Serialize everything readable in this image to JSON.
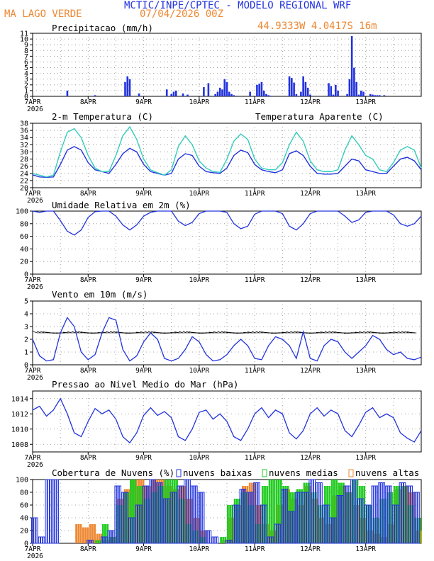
{
  "header": {
    "title": "MCTIC/INPE/CPTEC - MODELO REGIONAL WRF",
    "location": "MA LAGO VERDE",
    "run_date": "07/04/2026 00Z",
    "coords": "44.9333W 4.0417S 16m"
  },
  "colors": {
    "blue": "#2233dd",
    "cyan": "#33ccbb",
    "orange": "#ee8833",
    "green": "#22cc22",
    "title_blue": "#2233dd",
    "title_orange": "#ee8833"
  },
  "x_axis": {
    "labels": [
      "7APR",
      "8APR",
      "9APR",
      "10APR",
      "11APR",
      "12APR",
      "13APR"
    ],
    "year": "2026",
    "range_hours": [
      0,
      168
    ]
  },
  "chart_data": [
    {
      "type": "bar",
      "id": "precip",
      "title": "Precipitacao (mm/h)",
      "ylim": [
        0,
        11
      ],
      "yticks": [
        "0",
        "1",
        "2",
        "3",
        "4",
        "5",
        "6",
        "7",
        "8",
        "9",
        "10",
        "11"
      ],
      "series": [
        {
          "name": "Precipitacao",
          "x": [
            15,
            27,
            40,
            41,
            42,
            46,
            58,
            60,
            61,
            62,
            65,
            67,
            74,
            76,
            79,
            80,
            81,
            82,
            83,
            84,
            85,
            86,
            87,
            94,
            97,
            98,
            99,
            100,
            101,
            102,
            103,
            111,
            112,
            113,
            114,
            116,
            117,
            118,
            119,
            120,
            128,
            129,
            130,
            131,
            132,
            136,
            137,
            138,
            139,
            140,
            141,
            142,
            143,
            146,
            147,
            148,
            149,
            150,
            152
          ],
          "values": [
            1.0,
            0.2,
            2.5,
            3.5,
            3.0,
            0.5,
            1.2,
            0.4,
            0.8,
            1.0,
            0.5,
            0.3,
            1.6,
            2.3,
            0.4,
            0.8,
            1.5,
            1.2,
            3.0,
            2.5,
            0.8,
            0.4,
            0.2,
            0.8,
            2.0,
            2.2,
            2.5,
            1.0,
            0.4,
            0.2,
            0.1,
            3.5,
            3.2,
            2.4,
            0.4,
            0.8,
            3.5,
            2.5,
            1.5,
            0.3,
            2.3,
            1.8,
            0.3,
            2.0,
            1.0,
            0.4,
            3.0,
            10.5,
            5.0,
            2.5,
            0.3,
            1.0,
            0.8,
            0.4,
            0.3,
            0.2,
            0.2,
            0.2,
            0.2
          ]
        }
      ]
    },
    {
      "type": "line",
      "id": "temp",
      "title": "2-m Temperatura (C)",
      "title2": "Temperatura Aparente (C)",
      "ylim": [
        20,
        38
      ],
      "yticks": [
        "20",
        "22",
        "24",
        "26",
        "28",
        "30",
        "32",
        "34",
        "36",
        "38"
      ],
      "x": [
        0,
        3,
        6,
        9,
        12,
        15,
        18,
        21,
        24,
        27,
        30,
        33,
        36,
        39,
        42,
        45,
        48,
        51,
        54,
        57,
        60,
        63,
        66,
        69,
        72,
        75,
        78,
        81,
        84,
        87,
        90,
        93,
        96,
        99,
        102,
        105,
        108,
        111,
        114,
        117,
        120,
        123,
        126,
        129,
        132,
        135,
        138,
        141,
        144,
        147,
        150,
        153,
        156,
        159,
        162,
        165,
        168
      ],
      "series": [
        {
          "name": "2-m Temperatura",
          "values": [
            23.6,
            23.0,
            22.9,
            23.0,
            26.5,
            30.5,
            31.5,
            30.5,
            27.0,
            25.0,
            24.5,
            24.0,
            26.5,
            29.5,
            31.0,
            30.0,
            26.5,
            24.5,
            24.0,
            23.5,
            24.0,
            28.0,
            29.5,
            29.0,
            26.0,
            24.5,
            24.2,
            24.0,
            25.5,
            29.0,
            30.5,
            29.8,
            26.5,
            25.0,
            24.5,
            24.2,
            25.0,
            29.5,
            30.3,
            29.0,
            26.0,
            24.0,
            23.8,
            23.8,
            24.0,
            26.0,
            28.0,
            27.5,
            25.0,
            24.5,
            24.0,
            24.0,
            26.0,
            28.0,
            28.5,
            27.5,
            25.0
          ]
        },
        {
          "name": "Temperatura Aparente",
          "values": [
            24.0,
            23.5,
            23.0,
            23.5,
            30.0,
            35.5,
            36.5,
            34.0,
            29.0,
            25.5,
            24.5,
            24.5,
            29.0,
            34.5,
            37.0,
            33.5,
            28.0,
            25.0,
            24.2,
            23.5,
            25.0,
            31.5,
            34.5,
            32.0,
            27.5,
            25.5,
            24.5,
            24.3,
            28.0,
            33.0,
            35.0,
            33.5,
            28.0,
            25.5,
            25.0,
            25.0,
            27.0,
            32.0,
            35.5,
            33.0,
            27.5,
            25.0,
            24.5,
            24.5,
            25.0,
            30.5,
            34.5,
            32.0,
            29.0,
            28.0,
            25.0,
            24.5,
            27.0,
            30.5,
            31.5,
            30.5,
            25.5
          ]
        }
      ]
    },
    {
      "type": "line",
      "id": "rh",
      "title": "Umidade Relativa em 2m (%)",
      "ylim": [
        0,
        100
      ],
      "yticks": [
        "0",
        "20",
        "40",
        "60",
        "80",
        "100"
      ],
      "x": [
        0,
        3,
        6,
        9,
        12,
        15,
        18,
        21,
        24,
        27,
        30,
        33,
        36,
        39,
        42,
        45,
        48,
        51,
        54,
        57,
        60,
        63,
        66,
        69,
        72,
        75,
        78,
        81,
        84,
        87,
        90,
        93,
        96,
        99,
        102,
        105,
        108,
        111,
        114,
        117,
        120,
        123,
        126,
        129,
        132,
        135,
        138,
        141,
        144,
        147,
        150,
        153,
        156,
        159,
        162,
        165,
        168
      ],
      "series": [
        {
          "name": "Umidade Relativa",
          "values": [
            100,
            98,
            100,
            100,
            85,
            68,
            62,
            70,
            90,
            99,
            100,
            100,
            92,
            78,
            70,
            78,
            92,
            98,
            100,
            100,
            100,
            84,
            77,
            82,
            96,
            100,
            100,
            100,
            98,
            80,
            72,
            76,
            95,
            100,
            100,
            100,
            96,
            76,
            70,
            80,
            96,
            100,
            100,
            100,
            100,
            92,
            82,
            86,
            98,
            100,
            100,
            100,
            94,
            80,
            76,
            80,
            92
          ]
        }
      ]
    },
    {
      "type": "line",
      "id": "wind",
      "title": "Vento em 10m (m/s)",
      "ylim": [
        0,
        5
      ],
      "yticks": [
        "0",
        "1",
        "2",
        "3",
        "4",
        "5"
      ],
      "x": [
        0,
        3,
        6,
        9,
        12,
        15,
        18,
        21,
        24,
        27,
        30,
        33,
        36,
        39,
        42,
        45,
        48,
        51,
        54,
        57,
        60,
        63,
        66,
        69,
        72,
        75,
        78,
        81,
        84,
        87,
        90,
        93,
        96,
        99,
        102,
        105,
        108,
        111,
        114,
        117,
        120,
        123,
        126,
        129,
        132,
        135,
        138,
        141,
        144,
        147,
        150,
        153,
        156,
        159,
        162,
        165,
        168
      ],
      "series": [
        {
          "name": "Vento",
          "values": [
            2.0,
            0.7,
            0.3,
            0.4,
            2.5,
            3.7,
            3.0,
            1.0,
            0.4,
            0.8,
            2.5,
            3.7,
            3.5,
            1.2,
            0.3,
            0.7,
            1.8,
            2.5,
            2.0,
            0.5,
            0.3,
            0.5,
            1.2,
            2.2,
            1.8,
            0.8,
            0.3,
            0.4,
            0.8,
            1.5,
            2.0,
            1.5,
            0.5,
            0.4,
            1.5,
            2.2,
            2.0,
            1.5,
            0.5,
            2.6,
            0.5,
            0.3,
            1.5,
            2.0,
            1.8,
            1.0,
            0.5,
            1.0,
            1.5,
            2.3,
            2.0,
            1.2,
            0.8,
            1.0,
            0.5,
            0.4,
            0.6
          ]
        }
      ],
      "barbs": "wind barbs along the 2.5 m/s line at each time step"
    },
    {
      "type": "line",
      "id": "pressure",
      "title": "Pressao ao Nivel Medio do Mar (hPa)",
      "ylim": [
        1007,
        1015
      ],
      "yticks": [
        "1008",
        "1010",
        "1012",
        "1014"
      ],
      "x": [
        0,
        3,
        6,
        9,
        12,
        15,
        18,
        21,
        24,
        27,
        30,
        33,
        36,
        39,
        42,
        45,
        48,
        51,
        54,
        57,
        60,
        63,
        66,
        69,
        72,
        75,
        78,
        81,
        84,
        87,
        90,
        93,
        96,
        99,
        102,
        105,
        108,
        111,
        114,
        117,
        120,
        123,
        126,
        129,
        132,
        135,
        138,
        141,
        144,
        147,
        150,
        153,
        156,
        159,
        162,
        165,
        168
      ],
      "series": [
        {
          "name": "Pressao",
          "values": [
            1012.5,
            1013.0,
            1011.7,
            1012.5,
            1014.0,
            1012.0,
            1009.5,
            1009.0,
            1011.0,
            1012.7,
            1012.0,
            1012.5,
            1011.3,
            1009.0,
            1008.2,
            1009.5,
            1011.8,
            1012.8,
            1011.8,
            1012.3,
            1011.5,
            1009.0,
            1008.5,
            1010.0,
            1012.2,
            1012.5,
            1011.3,
            1012.0,
            1011.0,
            1009.0,
            1008.5,
            1010.0,
            1012.0,
            1012.8,
            1011.5,
            1012.5,
            1012.0,
            1009.5,
            1008.7,
            1009.8,
            1012.0,
            1012.8,
            1011.7,
            1012.5,
            1012.0,
            1009.8,
            1009.0,
            1010.5,
            1012.2,
            1012.8,
            1011.5,
            1012.0,
            1011.5,
            1009.5,
            1008.8,
            1008.3,
            1009.8
          ]
        }
      ]
    },
    {
      "type": "bar",
      "id": "clouds",
      "title": "Cobertura de Nuvens (%)",
      "legend": [
        "nuvens baixas",
        "nuvens medias",
        "nuvens altas"
      ],
      "ylim": [
        0,
        100
      ],
      "yticks": [
        "0",
        "20",
        "40",
        "60",
        "80",
        "100"
      ],
      "x": [
        0,
        3,
        6,
        9,
        12,
        15,
        18,
        21,
        24,
        27,
        30,
        33,
        36,
        39,
        42,
        45,
        48,
        51,
        54,
        57,
        60,
        63,
        66,
        69,
        72,
        75,
        78,
        81,
        84,
        87,
        90,
        93,
        96,
        99,
        102,
        105,
        108,
        111,
        114,
        117,
        120,
        123,
        126,
        129,
        132,
        135,
        138,
        141,
        144,
        147,
        150,
        153,
        156,
        159,
        162,
        165
      ],
      "series": [
        {
          "name": "nuvens baixas",
          "values": [
            40,
            10,
            100,
            100,
            0,
            0,
            0,
            0,
            5,
            0,
            10,
            20,
            90,
            80,
            40,
            60,
            90,
            100,
            95,
            70,
            80,
            90,
            100,
            90,
            80,
            20,
            10,
            0,
            5,
            60,
            85,
            80,
            95,
            60,
            10,
            30,
            85,
            50,
            80,
            80,
            100,
            95,
            60,
            40,
            75,
            90,
            100,
            70,
            60,
            90,
            95,
            90,
            60,
            95,
            90,
            80
          ]
        },
        {
          "name": "nuvens medias",
          "values": [
            0,
            0,
            0,
            0,
            0,
            0,
            0,
            0,
            0,
            5,
            30,
            10,
            60,
            80,
            100,
            90,
            70,
            80,
            90,
            100,
            100,
            70,
            30,
            20,
            10,
            0,
            0,
            10,
            60,
            70,
            80,
            60,
            30,
            90,
            100,
            100,
            90,
            80,
            85,
            95,
            80,
            60,
            90,
            100,
            95,
            80,
            100,
            90,
            60,
            40,
            70,
            80,
            90,
            90,
            60,
            40
          ]
        },
        {
          "name": "nuvens altas",
          "values": [
            0,
            0,
            0,
            0,
            0,
            0,
            30,
            25,
            30,
            15,
            5,
            10,
            70,
            85,
            100,
            100,
            90,
            100,
            100,
            90,
            85,
            90,
            70,
            40,
            20,
            0,
            0,
            5,
            40,
            60,
            90,
            95,
            60,
            30,
            20,
            60,
            85,
            70,
            60,
            90,
            70,
            40,
            30,
            75,
            90,
            80,
            60,
            40,
            20,
            15,
            10,
            30,
            85,
            90,
            80,
            20
          ]
        }
      ]
    }
  ]
}
